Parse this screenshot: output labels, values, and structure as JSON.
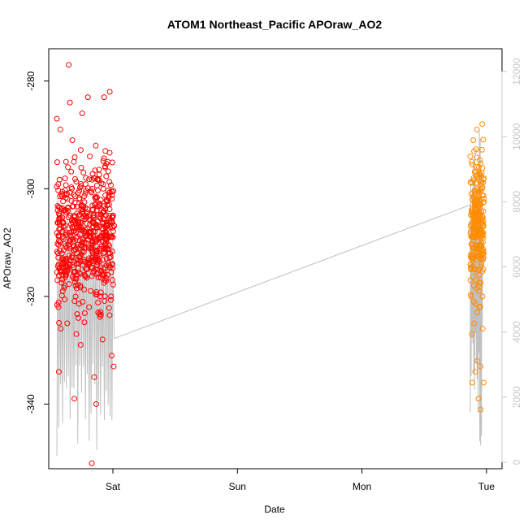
{
  "chart_data": {
    "type": "scatter",
    "title": "ATOM1 Northeast_Pacific APOraw_AO2",
    "xlabel": "Date",
    "ylabel": "APOraw_AO2",
    "x_ticks": [
      "Sat",
      "Sun",
      "Mon",
      "Tue"
    ],
    "y_ticks": [
      -280,
      -300,
      -320,
      -340
    ],
    "y_right_ticks": [
      0,
      2000,
      4000,
      6000,
      8000,
      10000,
      12000
    ],
    "ylim": [
      -352,
      -274
    ],
    "y_right_lim": [
      -200,
      12700
    ],
    "grid": false,
    "series": [
      {
        "kind": "points",
        "color": "#ff0000",
        "x_range_days": [
          -0.45,
          0.01
        ],
        "y_stats": {
          "center": -309,
          "spread_low": -351,
          "spread_high": -277
        },
        "values": [
          -287,
          -300,
          -305,
          -308,
          -310,
          -312,
          -315,
          -318,
          -320,
          -322,
          -325,
          -328,
          -329,
          -334,
          -335,
          -291,
          -295,
          -298,
          -301,
          -303,
          -306,
          -309,
          -311,
          -314,
          -317,
          -321,
          -326,
          -340,
          -339,
          -282,
          -283,
          -295,
          -299,
          -302,
          -304,
          -307,
          -309,
          -313,
          -316,
          -319,
          -323,
          -327,
          -331,
          -294,
          -296,
          -300,
          -303,
          -305,
          -308,
          -310,
          -312,
          -315,
          -318,
          -320,
          -324,
          -333,
          -351,
          -284,
          -293,
          -297,
          -301,
          -304,
          -306,
          -309,
          -311,
          -313,
          -316,
          -318,
          -322,
          -298,
          -300,
          -303,
          -305,
          -307,
          -310,
          -312,
          -314,
          -319,
          -277,
          -283,
          -286,
          -289,
          -292,
          -295,
          -305
        ]
      },
      {
        "kind": "points",
        "color": "#ff8c00",
        "x_range_days": [
          2.87,
          2.98
        ],
        "y_stats": {
          "center": -306,
          "spread_low": -341,
          "spread_high": -288
        },
        "values": [
          -294,
          -296,
          -298,
          -300,
          -302,
          -304,
          -305,
          -306,
          -307,
          -308,
          -309,
          -310,
          -312,
          -314,
          -316,
          -318,
          -320,
          -323,
          -327,
          -333,
          -334,
          -336,
          -339,
          -291,
          -297,
          -299,
          -301,
          -303,
          -305,
          -307,
          -309,
          -311,
          -313,
          -315,
          -317,
          -319,
          -321,
          -288,
          -289,
          -295,
          -300,
          -303,
          -306,
          -308,
          -311,
          -314,
          -317,
          -320,
          -322,
          -325,
          -326,
          -332,
          -336,
          -341
        ]
      },
      {
        "kind": "line",
        "color": "#c0c0c0",
        "axis": "right",
        "description_points": [
          {
            "day": -0.45,
            "v": 1000
          },
          {
            "day": -0.4,
            "v": 7500
          },
          {
            "day": -0.35,
            "v": 200
          },
          {
            "day": -0.3,
            "v": 8000
          },
          {
            "day": -0.25,
            "v": 300
          },
          {
            "day": -0.2,
            "v": 8200
          },
          {
            "day": -0.15,
            "v": 250
          },
          {
            "day": -0.1,
            "v": 8300
          },
          {
            "day": -0.05,
            "v": 200
          },
          {
            "day": 0.0,
            "v": 6800
          },
          {
            "day": 0.01,
            "v": 3800
          },
          {
            "day": 2.88,
            "v": 8000
          },
          {
            "day": 2.9,
            "v": 1500
          },
          {
            "day": 2.92,
            "v": 200
          },
          {
            "day": 2.94,
            "v": 9800
          },
          {
            "day": 2.96,
            "v": 10800
          }
        ]
      }
    ]
  }
}
